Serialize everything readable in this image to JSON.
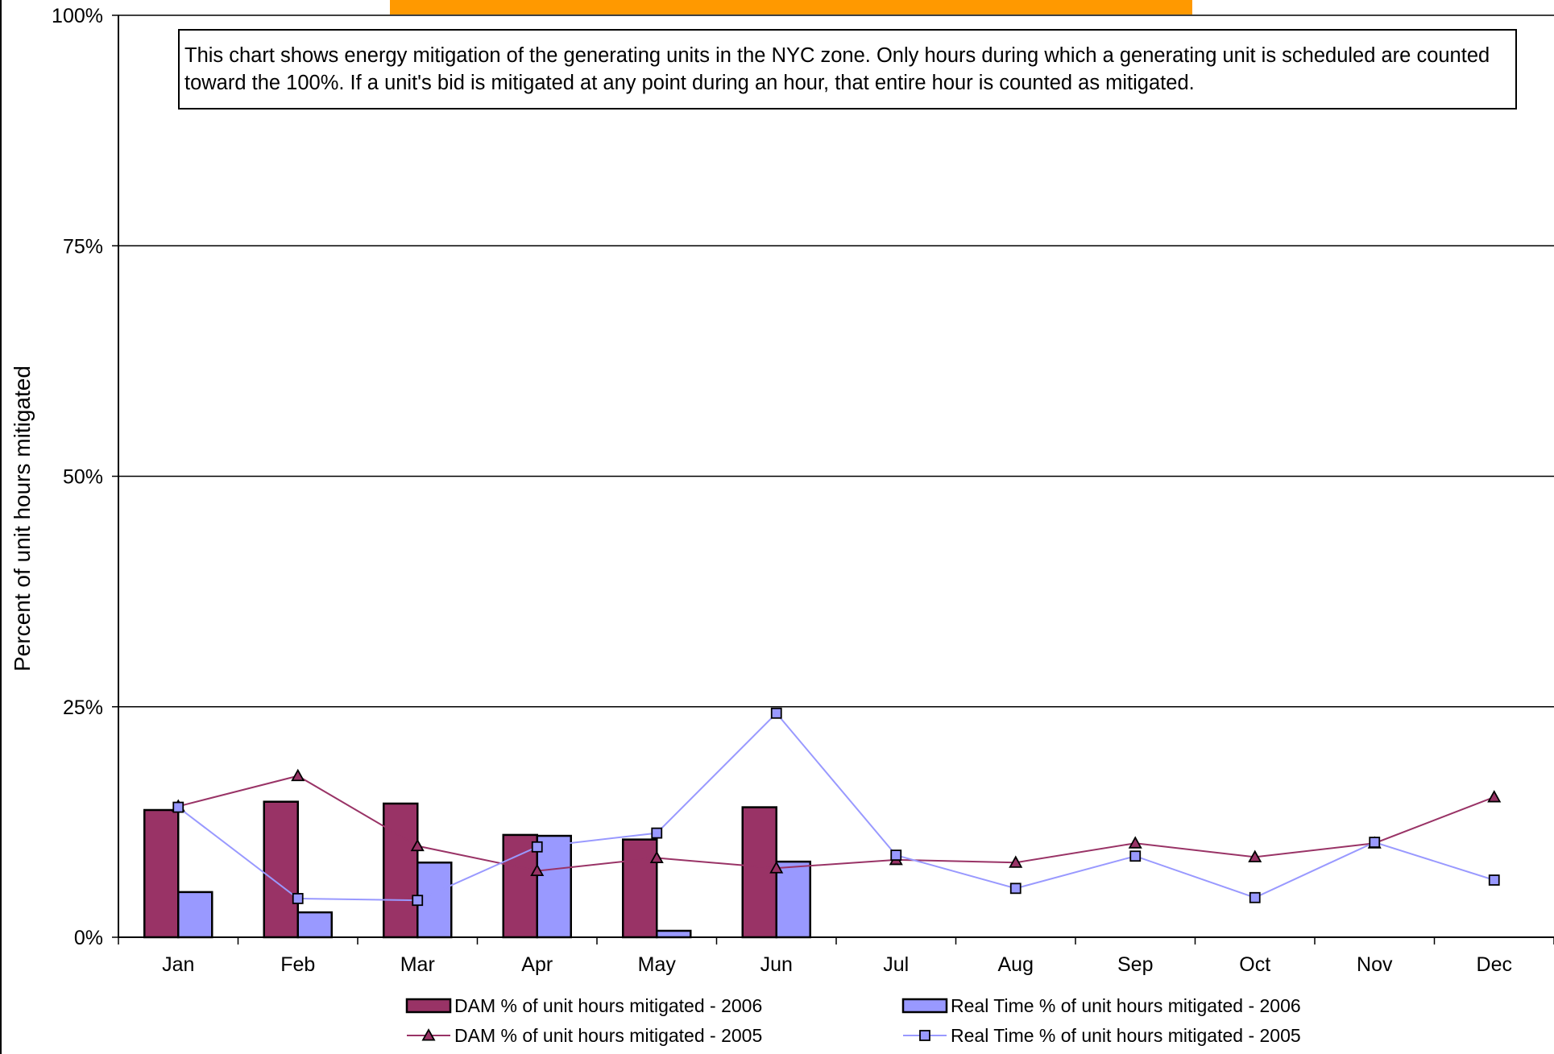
{
  "chart_data": {
    "type": "bar",
    "categories": [
      "Jan",
      "Feb",
      "Mar",
      "Apr",
      "May",
      "Jun",
      "Jul",
      "Aug",
      "Sep",
      "Oct",
      "Nov",
      "Dec"
    ],
    "ylabel": "Percent of unit hours mitigated",
    "ylim": [
      0,
      100
    ],
    "yticks": [
      "0%",
      "25%",
      "50%",
      "75%",
      "100%"
    ],
    "yticks_values": [
      0,
      25,
      50,
      75,
      100
    ],
    "grid": true,
    "legend_placement": "bottom",
    "annotation": "This chart shows energy mitigation of the generating units in the NYC zone.  Only hours during which a generating unit is scheduled are counted toward the 100%. If a unit's bid is mitigated at any point during an hour, that entire hour is counted as mitigated.",
    "series": [
      {
        "name": "DAM % of unit hours mitigated - 2006",
        "type": "bar",
        "color": "#993366",
        "values": [
          13.8,
          14.7,
          14.5,
          11.1,
          10.6,
          14.1,
          null,
          null,
          null,
          null,
          null,
          null
        ]
      },
      {
        "name": "Real Time % of unit hours mitigated - 2006",
        "type": "bar",
        "color": "#9999FF",
        "values": [
          4.9,
          2.7,
          8.1,
          11.0,
          0.7,
          8.2,
          null,
          null,
          null,
          null,
          null,
          null
        ]
      },
      {
        "name": "DAM % of unit hours mitigated - 2005",
        "type": "line",
        "marker": "triangle",
        "color": "#993366",
        "values": [
          14.2,
          17.5,
          9.9,
          7.2,
          8.6,
          7.5,
          8.4,
          8.1,
          10.2,
          8.7,
          10.2,
          15.2
        ]
      },
      {
        "name": "Real Time % of unit hours mitigated - 2005",
        "type": "line",
        "marker": "square",
        "color": "#9999FF",
        "values": [
          14.1,
          4.2,
          4.0,
          9.8,
          11.3,
          24.3,
          8.9,
          5.3,
          8.8,
          4.3,
          10.3,
          6.2
        ]
      }
    ]
  }
}
